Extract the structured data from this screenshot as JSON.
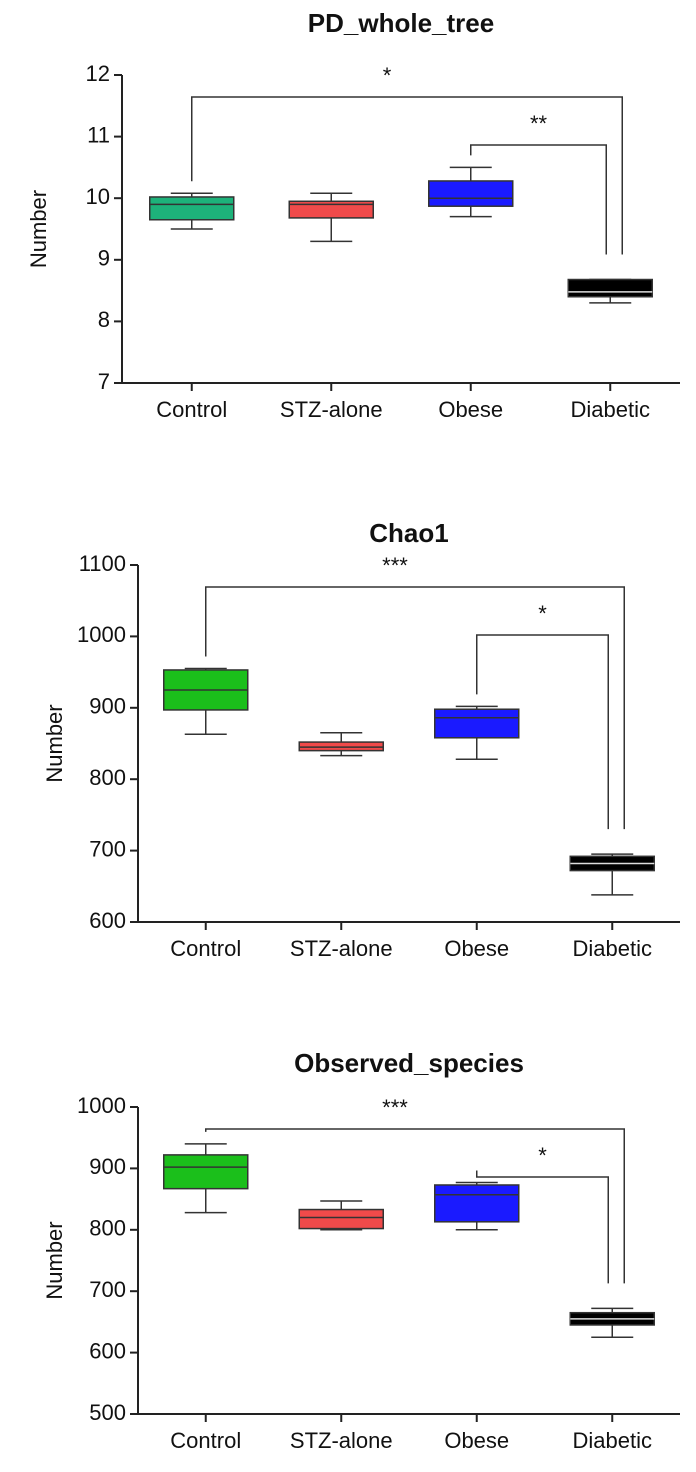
{
  "chart_data": [
    {
      "type": "box",
      "title": "PD_whole_tree",
      "ylabel": "Number",
      "categories": [
        "Control",
        "STZ-alone",
        "Obese",
        "Diabetic"
      ],
      "colors": [
        "#1db27a",
        "#f04a4a",
        "#1a1aff",
        "#000000"
      ],
      "boxes": [
        {
          "min": 9.5,
          "q1": 9.65,
          "median": 9.9,
          "q3": 10.02,
          "max": 10.08
        },
        {
          "min": 9.3,
          "q1": 9.68,
          "median": 9.9,
          "q3": 9.95,
          "max": 10.08
        },
        {
          "min": 9.7,
          "q1": 9.87,
          "median": 10.0,
          "q3": 10.28,
          "max": 10.5
        },
        {
          "min": 8.3,
          "q1": 8.4,
          "median": 8.48,
          "q3": 8.68,
          "max": 8.68
        }
      ],
      "ylim": [
        7,
        12
      ],
      "yticks": [
        7,
        8,
        9,
        10,
        11,
        12
      ],
      "annotations": [
        {
          "label": "*",
          "from": 0,
          "to": 3
        },
        {
          "label": "**",
          "from": 2,
          "to": 3
        }
      ]
    },
    {
      "type": "box",
      "title": "Chao1",
      "ylabel": "Number",
      "categories": [
        "Control",
        "STZ-alone",
        "Obese",
        "Diabetic"
      ],
      "colors": [
        "#1bbf1b",
        "#f04a4a",
        "#1a1aff",
        "#000000"
      ],
      "boxes": [
        {
          "min": 863,
          "q1": 897,
          "median": 925,
          "q3": 953,
          "max": 955
        },
        {
          "min": 833,
          "q1": 840,
          "median": 845,
          "q3": 852,
          "max": 865
        },
        {
          "min": 828,
          "q1": 858,
          "median": 886,
          "q3": 898,
          "max": 902
        },
        {
          "min": 638,
          "q1": 672,
          "median": 682,
          "q3": 692,
          "max": 695
        }
      ],
      "ylim": [
        600,
        1100
      ],
      "yticks": [
        600,
        700,
        800,
        900,
        1000,
        1100
      ],
      "annotations": [
        {
          "label": "***",
          "from": 0,
          "to": 3
        },
        {
          "label": "*",
          "from": 2,
          "to": 3
        }
      ]
    },
    {
      "type": "box",
      "title": "Observed_species",
      "ylabel": "Number",
      "categories": [
        "Control",
        "STZ-alone",
        "Obese",
        "Diabetic"
      ],
      "colors": [
        "#1bbf1b",
        "#f04a4a",
        "#1a1aff",
        "#000000"
      ],
      "boxes": [
        {
          "min": 828,
          "q1": 867,
          "median": 902,
          "q3": 922,
          "max": 940
        },
        {
          "min": 800,
          "q1": 802,
          "median": 820,
          "q3": 833,
          "max": 847
        },
        {
          "min": 800,
          "q1": 813,
          "median": 857,
          "q3": 873,
          "max": 877
        },
        {
          "min": 625,
          "q1": 645,
          "median": 655,
          "q3": 665,
          "max": 672
        }
      ],
      "ylim": [
        500,
        1000
      ],
      "yticks": [
        500,
        600,
        700,
        800,
        900,
        1000
      ],
      "annotations": [
        {
          "label": "***",
          "from": 0,
          "to": 3
        },
        {
          "label": "*",
          "from": 2,
          "to": 3
        }
      ]
    }
  ]
}
